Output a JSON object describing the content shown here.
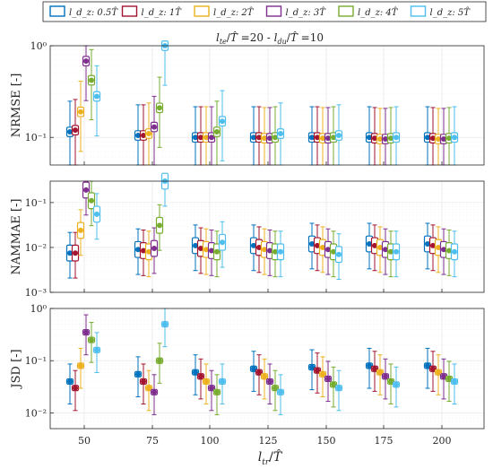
{
  "chart_data": {
    "type": "box",
    "title": "l_te/T̂ =20 - l_d_u/T̂ =10",
    "xlabel": "l_tr/T̂",
    "x_ticks": [
      "50",
      "75",
      "100",
      "125",
      "150",
      "175",
      "200"
    ],
    "categories": [
      50,
      75,
      100,
      125,
      150,
      175,
      200
    ],
    "legend_position": "top",
    "series": [
      {
        "name": "l_d_z: 0.5T̂",
        "color": "#0072BD"
      },
      {
        "name": "l_d_z: 1T̂",
        "color": "#A2142F"
      },
      {
        "name": "l_d_z: 2T̂",
        "color": "#EDB120"
      },
      {
        "name": "l_d_z: 3T̂",
        "color": "#7E2F8E"
      },
      {
        "name": "l_d_z: 4T̂",
        "color": "#77AC30"
      },
      {
        "name": "l_d_z: 5T̂",
        "color": "#4DBEEE"
      }
    ],
    "panels": [
      {
        "ylabel": "NRMSE [-]",
        "scale": "log",
        "ylim": [
          0.05,
          1
        ],
        "y_ticks": [
          "10⁻¹",
          "10⁰"
        ],
        "median": [
          [
            0.115,
            0.105,
            0.1,
            0.1,
            0.1,
            0.1,
            0.1
          ],
          [
            0.12,
            0.105,
            0.1,
            0.1,
            0.1,
            0.098,
            0.098
          ],
          [
            0.19,
            0.11,
            0.1,
            0.098,
            0.098,
            0.096,
            0.096
          ],
          [
            0.68,
            0.13,
            0.1,
            0.098,
            0.098,
            0.096,
            0.096
          ],
          [
            0.42,
            0.21,
            0.115,
            0.1,
            0.1,
            0.098,
            0.098
          ],
          [
            0.28,
            1.0,
            0.15,
            0.11,
            0.105,
            0.1,
            0.1
          ]
        ]
      },
      {
        "ylabel": "NAMMAE [-]",
        "scale": "log",
        "ylim": [
          0.001,
          0.3
        ],
        "y_ticks": [
          "10⁻³",
          "10⁻²",
          "10⁻¹"
        ],
        "median": [
          [
            0.0075,
            0.009,
            0.011,
            0.011,
            0.012,
            0.012,
            0.012
          ],
          [
            0.0075,
            0.0085,
            0.0095,
            0.01,
            0.011,
            0.011,
            0.011
          ],
          [
            0.024,
            0.008,
            0.009,
            0.009,
            0.01,
            0.01,
            0.01
          ],
          [
            0.19,
            0.0095,
            0.0085,
            0.0085,
            0.009,
            0.009,
            0.009
          ],
          [
            0.11,
            0.031,
            0.008,
            0.008,
            0.008,
            0.008,
            0.0085
          ],
          [
            0.055,
            0.3,
            0.013,
            0.008,
            0.007,
            0.008,
            0.008
          ]
        ]
      },
      {
        "ylabel": "JSD [-]",
        "scale": "log",
        "ylim": [
          0.005,
          1
        ],
        "y_ticks": [
          "10⁻²",
          "10⁻¹",
          "10⁰"
        ],
        "median": [
          [
            0.04,
            0.055,
            0.06,
            0.07,
            0.075,
            0.08,
            0.08
          ],
          [
            0.03,
            0.04,
            0.05,
            0.06,
            0.065,
            0.07,
            0.07
          ],
          [
            0.08,
            0.03,
            0.04,
            0.05,
            0.055,
            0.06,
            0.06
          ],
          [
            0.35,
            0.025,
            0.03,
            0.04,
            0.045,
            0.05,
            0.05
          ],
          [
            0.25,
            0.1,
            0.025,
            0.03,
            0.035,
            0.04,
            0.045
          ],
          [
            0.16,
            0.5,
            0.04,
            0.025,
            0.03,
            0.035,
            0.04
          ]
        ]
      }
    ]
  }
}
